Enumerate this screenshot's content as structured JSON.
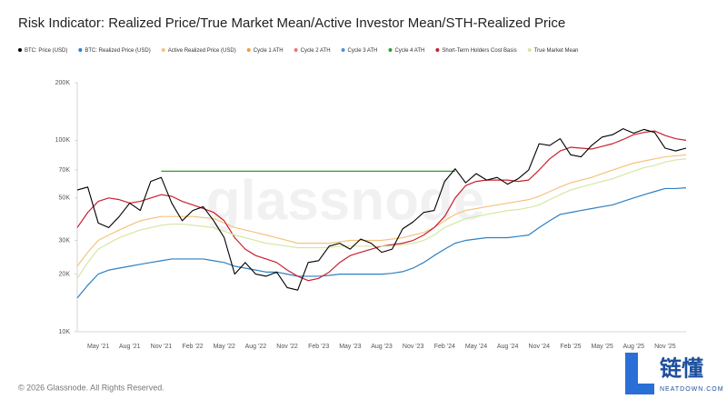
{
  "chart_data": {
    "type": "line",
    "title": "Risk Indicator: Realized Price/True Market Mean/Active Investor Mean/STH-Realized Price",
    "log_y": true,
    "grid": false,
    "legend": "top",
    "categories": [
      null,
      null,
      "May '21",
      null,
      null,
      "Aug '21",
      null,
      null,
      "Nov '21",
      null,
      null,
      "Feb '22",
      null,
      null,
      "May '22",
      null,
      null,
      "Aug '22",
      null,
      null,
      "Nov '22",
      null,
      null,
      "Feb '23",
      null,
      null,
      "May '23",
      null,
      null,
      "Aug '23",
      null,
      null,
      "Nov '23",
      null,
      null,
      "Feb '24",
      null,
      null,
      "May '24",
      null,
      null,
      "Aug '24",
      null,
      null,
      "Nov '24",
      null,
      null,
      "Feb '25",
      null,
      null,
      "May '25",
      null,
      null,
      "Aug '25",
      null,
      null,
      "Nov '25",
      null,
      null
    ],
    "ylim": [
      10000,
      200000
    ],
    "yticks": [
      {
        "value": 10000,
        "label": "10K"
      },
      {
        "value": 20000,
        "label": "20K"
      },
      {
        "value": 30000,
        "label": "30K"
      },
      {
        "value": 50000,
        "label": "50K"
      },
      {
        "value": 70000,
        "label": "70K"
      },
      {
        "value": 100000,
        "label": "100K"
      },
      {
        "value": 200000,
        "label": "200K"
      }
    ],
    "series": [
      {
        "name": "BTC: Price (USD)",
        "color": "#000000",
        "width": 1.1,
        "values": [
          55000,
          57000,
          37000,
          35000,
          40000,
          47000,
          43000,
          61000,
          64000,
          47000,
          38000,
          43000,
          45000,
          38000,
          31000,
          20000,
          23000,
          20000,
          19500,
          20500,
          17000,
          16500,
          23000,
          23500,
          28000,
          29000,
          27000,
          30500,
          29000,
          26000,
          27000,
          34500,
          37500,
          42000,
          43000,
          61000,
          71000,
          60000,
          67000,
          62000,
          64000,
          59000,
          63000,
          70000,
          96000,
          94000,
          102000,
          84000,
          82000,
          94000,
          104000,
          107000,
          115000,
          109000,
          114000,
          110000,
          91000,
          88000,
          91000
        ]
      },
      {
        "name": "BTC: Realized Price (USD)",
        "color": "#2f7fc1",
        "width": 1.2,
        "values": [
          15000,
          17500,
          20000,
          21000,
          21500,
          22000,
          22500,
          23000,
          23500,
          24000,
          24000,
          24000,
          24000,
          23500,
          23000,
          22000,
          21500,
          21000,
          20500,
          20500,
          20000,
          19500,
          19500,
          19500,
          19700,
          20000,
          20000,
          20000,
          20000,
          20000,
          20200,
          20600,
          21500,
          23000,
          25000,
          27000,
          29000,
          30000,
          30500,
          31000,
          31000,
          31000,
          31500,
          32000,
          35000,
          38000,
          41000,
          42000,
          43000,
          44000,
          45000,
          46000,
          48000,
          50000,
          52000,
          54000,
          56000,
          56000,
          56500
        ]
      },
      {
        "name": "Active Realized Price (USD)",
        "color": "#f6c27e",
        "width": 1.2,
        "values": [
          22000,
          26000,
          30000,
          32000,
          34000,
          36000,
          38000,
          39000,
          40000,
          40000,
          40000,
          40000,
          39500,
          39000,
          37000,
          35000,
          34000,
          33000,
          32000,
          31000,
          30000,
          29000,
          29000,
          29000,
          29000,
          29500,
          30000,
          30000,
          30000,
          30000,
          30500,
          31000,
          32000,
          33000,
          35000,
          38000,
          41000,
          43000,
          44000,
          45000,
          46000,
          47000,
          48000,
          49000,
          51000,
          54000,
          57000,
          60000,
          62000,
          64000,
          67000,
          70000,
          73000,
          76000,
          78000,
          80000,
          82000,
          83000,
          84000
        ]
      },
      {
        "name": "Cycle 1 ATH",
        "color": "#f29b3a"
      },
      {
        "name": "Cycle 2 ATH",
        "color": "#ef7470"
      },
      {
        "name": "Cycle 3 ATH",
        "color": "#4a90d9"
      },
      {
        "name": "Cycle 4 ATH",
        "color": "#2ca02c",
        "width": 1.2,
        "values": [
          null,
          null,
          null,
          null,
          null,
          null,
          null,
          null,
          69000,
          69000,
          69000,
          69000,
          69000,
          69000,
          69000,
          69000,
          69000,
          69000,
          69000,
          69000,
          69000,
          69000,
          69000,
          69000,
          69000,
          69000,
          69000,
          69000,
          69000,
          69000,
          69000,
          69000,
          69000,
          69000,
          69000,
          69000,
          69000,
          null,
          null,
          null,
          null,
          null,
          null,
          null,
          null,
          null,
          null,
          null,
          null,
          null,
          null,
          null,
          null,
          null,
          null,
          null,
          null,
          null,
          null
        ]
      },
      {
        "name": "Short-Term Holders Cost Basis",
        "color": "#c8202e",
        "width": 1.2,
        "values": [
          35000,
          42000,
          48000,
          50000,
          49000,
          47000,
          48000,
          50000,
          52000,
          51000,
          48000,
          46000,
          44000,
          42000,
          38000,
          31000,
          27000,
          25000,
          24000,
          23000,
          21000,
          19500,
          18500,
          19000,
          20500,
          23000,
          25000,
          26000,
          27000,
          28000,
          28500,
          29000,
          30000,
          32000,
          35000,
          40000,
          50000,
          58000,
          61000,
          62000,
          62000,
          62000,
          61000,
          62000,
          70000,
          80000,
          88000,
          92000,
          91000,
          90000,
          93000,
          96000,
          101000,
          107000,
          110000,
          112000,
          106000,
          102000,
          100000
        ]
      },
      {
        "name": "True Market Mean",
        "color": "#d3e8a0",
        "width": 1.2,
        "values": [
          19000,
          23000,
          27000,
          29000,
          31000,
          32500,
          34000,
          35000,
          36000,
          36500,
          36500,
          36000,
          35500,
          35000,
          33500,
          32000,
          31000,
          30000,
          29000,
          28500,
          28000,
          27500,
          27500,
          27500,
          27500,
          28000,
          28000,
          28000,
          28000,
          28000,
          28000,
          28500,
          29000,
          30000,
          32000,
          35000,
          37000,
          39000,
          40000,
          41000,
          42000,
          43000,
          43500,
          44500,
          46000,
          49000,
          52000,
          55000,
          57000,
          59000,
          61000,
          63000,
          66000,
          69000,
          72000,
          74000,
          77000,
          79000,
          80000
        ]
      }
    ]
  },
  "watermark": "glassnode",
  "footer": "© 2026 Glassnode. All Rights Reserved.",
  "logo": {
    "name": "链懂",
    "site": "NEATDOWN.COM"
  }
}
